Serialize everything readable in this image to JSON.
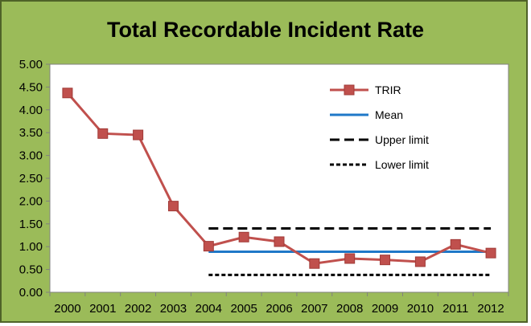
{
  "chart_data": {
    "type": "line",
    "title": "Total Recordable Incident Rate",
    "xlabel": "",
    "ylabel": "",
    "categories": [
      "2000",
      "2001",
      "2002",
      "2003",
      "2004",
      "2005",
      "2006",
      "2007",
      "2008",
      "2009",
      "2010",
      "2011",
      "2012"
    ],
    "yticks": [
      "0.00",
      "0.50",
      "1.00",
      "1.50",
      "2.00",
      "2.50",
      "3.00",
      "3.50",
      "4.00",
      "4.50",
      "5.00"
    ],
    "ylim": [
      0,
      5
    ],
    "grid": false,
    "legend_position": "top-right",
    "series": [
      {
        "name": "TRIR",
        "color": "#c0504d",
        "marker": "square",
        "values": [
          4.37,
          3.48,
          3.45,
          1.89,
          1.01,
          1.21,
          1.11,
          0.63,
          0.74,
          0.71,
          0.67,
          1.05,
          0.86
        ]
      },
      {
        "name": "Mean",
        "color": "#1f78c8",
        "x_start": "2004",
        "x_end": "2012",
        "value": 0.89
      },
      {
        "name": "Upper limit",
        "color": "#000000",
        "style": "dashed",
        "x_start": "2004",
        "x_end": "2012",
        "value": 1.4
      },
      {
        "name": "Lower limit",
        "color": "#000000",
        "style": "dotted",
        "x_start": "2004",
        "x_end": "2012",
        "value": 0.38
      }
    ],
    "colors": {
      "frame": "#9bbb59",
      "plot_background": "#ffffff"
    }
  }
}
